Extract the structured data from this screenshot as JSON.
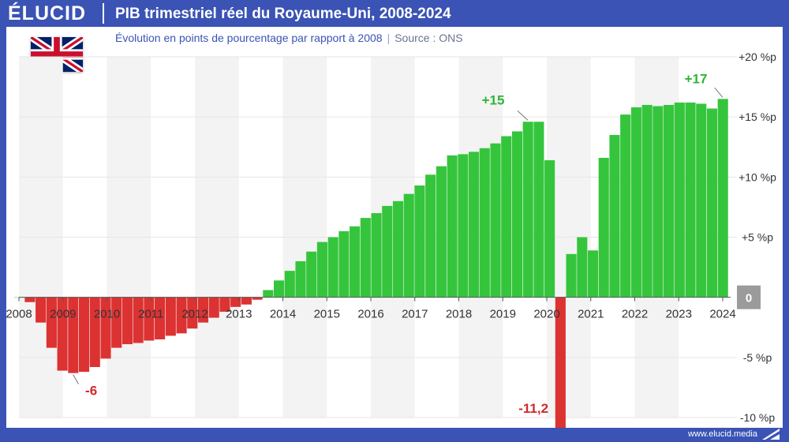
{
  "header": {
    "logo_text": "ÉLUCID",
    "title": "PIB trimestriel réel du Royaume-Uni, 2008-2024",
    "subtitle": "Évolution en points de pourcentage par rapport à 2008",
    "source": "Source : ONS"
  },
  "flag_icon": "uk-flag-icon",
  "footer": {
    "site": "www.elucid.media"
  },
  "colors": {
    "frame": "#3a53b4",
    "positive": "#35c53d",
    "negative": "#dc3232",
    "shade": "#f3f3f3",
    "grid": "#e6e6e6"
  },
  "chart_data": {
    "type": "bar",
    "x_ticks": [
      "2008",
      "2009",
      "2010",
      "2011",
      "2012",
      "2013",
      "2014",
      "2015",
      "2016",
      "2017",
      "2018",
      "2019",
      "2020",
      "2021",
      "2022",
      "2023",
      "2024"
    ],
    "y_ticks": [
      "+20 %p",
      "+15 %p",
      "+10 %p",
      "+5 %p",
      "0",
      "-5 %p",
      "-10 %p"
    ],
    "y_tick_values": [
      20,
      15,
      10,
      5,
      0,
      -5,
      -10
    ],
    "ylim": [
      -10,
      20
    ],
    "xlim": [
      2008,
      2024
    ],
    "grid": true,
    "values": [
      0,
      -0.4,
      -2.1,
      -4.2,
      -6.1,
      -6.3,
      -6.2,
      -5.8,
      -5.1,
      -4.2,
      -3.9,
      -3.8,
      -3.6,
      -3.5,
      -3.2,
      -3.0,
      -2.6,
      -2.1,
      -1.7,
      -1.2,
      -0.8,
      -0.6,
      -0.2,
      0.6,
      1.4,
      2.2,
      3.0,
      3.8,
      4.6,
      5.0,
      5.5,
      5.9,
      6.6,
      7.0,
      7.6,
      8.0,
      8.6,
      9.3,
      10.2,
      10.9,
      11.8,
      11.9,
      12.1,
      12.4,
      12.8,
      13.4,
      13.8,
      14.6,
      14.6,
      11.4,
      -11.2,
      3.6,
      5.0,
      3.9,
      11.6,
      13.5,
      15.2,
      15.8,
      16.0,
      15.9,
      16.0,
      16.2,
      16.2,
      16.1,
      15.7,
      16.5
    ],
    "annotations": [
      {
        "text": "+15",
        "index": 47
      },
      {
        "text": "+17",
        "index": 65
      },
      {
        "text": "-6",
        "index": 5
      },
      {
        "text": "-11,2",
        "index": 50
      }
    ]
  }
}
